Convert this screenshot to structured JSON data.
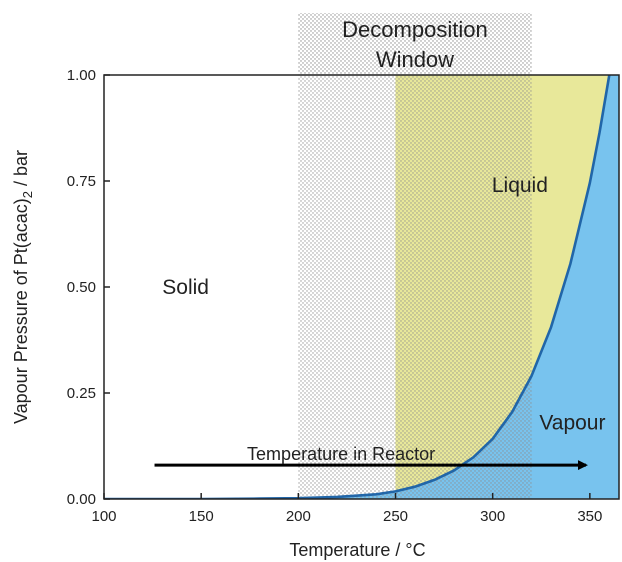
{
  "chart_data": {
    "type": "area",
    "xlabel": "Temperature / °C",
    "ylabel_main": "Vapour Pressure of Pt(acac)",
    "ylabel_sub": "2",
    "ylabel_unit": " / bar",
    "xlim": [
      100,
      365
    ],
    "ylim": [
      0,
      1
    ],
    "xticks": [
      100,
      150,
      200,
      250,
      300,
      350
    ],
    "yticks": [
      0.0,
      0.25,
      0.5,
      0.75,
      1.0
    ],
    "xtick_labels": [
      "100",
      "150",
      "200",
      "250",
      "300",
      "350"
    ],
    "ytick_labels": [
      "0.00",
      "0.25",
      "0.50",
      "0.75",
      "1.00"
    ],
    "grid": false,
    "series": [
      {
        "x": [
          100,
          150,
          180,
          200,
          220,
          240,
          250,
          260,
          270,
          280,
          290,
          300,
          310,
          320,
          330,
          340,
          350,
          355,
          360
        ],
        "y": [
          0.0,
          0.0,
          0.001,
          0.002,
          0.005,
          0.011,
          0.018,
          0.029,
          0.045,
          0.067,
          0.098,
          0.142,
          0.205,
          0.29,
          0.405,
          0.555,
          0.745,
          0.865,
          1.0
        ]
      }
    ],
    "regions": {
      "decomposition_window": {
        "x": [
          200,
          320
        ],
        "label_line1": "Decomposition",
        "label_line2": "Window"
      },
      "liquid_band": {
        "x": [
          250,
          360
        ]
      },
      "solid_label": {
        "text": "Solid"
      },
      "liquid_label": {
        "text": "Liquid"
      },
      "vapour_label": {
        "text": "Vapour"
      }
    },
    "arrow": {
      "text": "Temperature in Reactor",
      "x": [
        126,
        348
      ],
      "y": 0.08
    },
    "colors": {
      "vapour": "#78c3ee",
      "liquid": "#e8e89a",
      "curve": "#2166a8",
      "hatch": "#8c8c8c",
      "axis": "#222222",
      "arrow": "#000000"
    }
  }
}
